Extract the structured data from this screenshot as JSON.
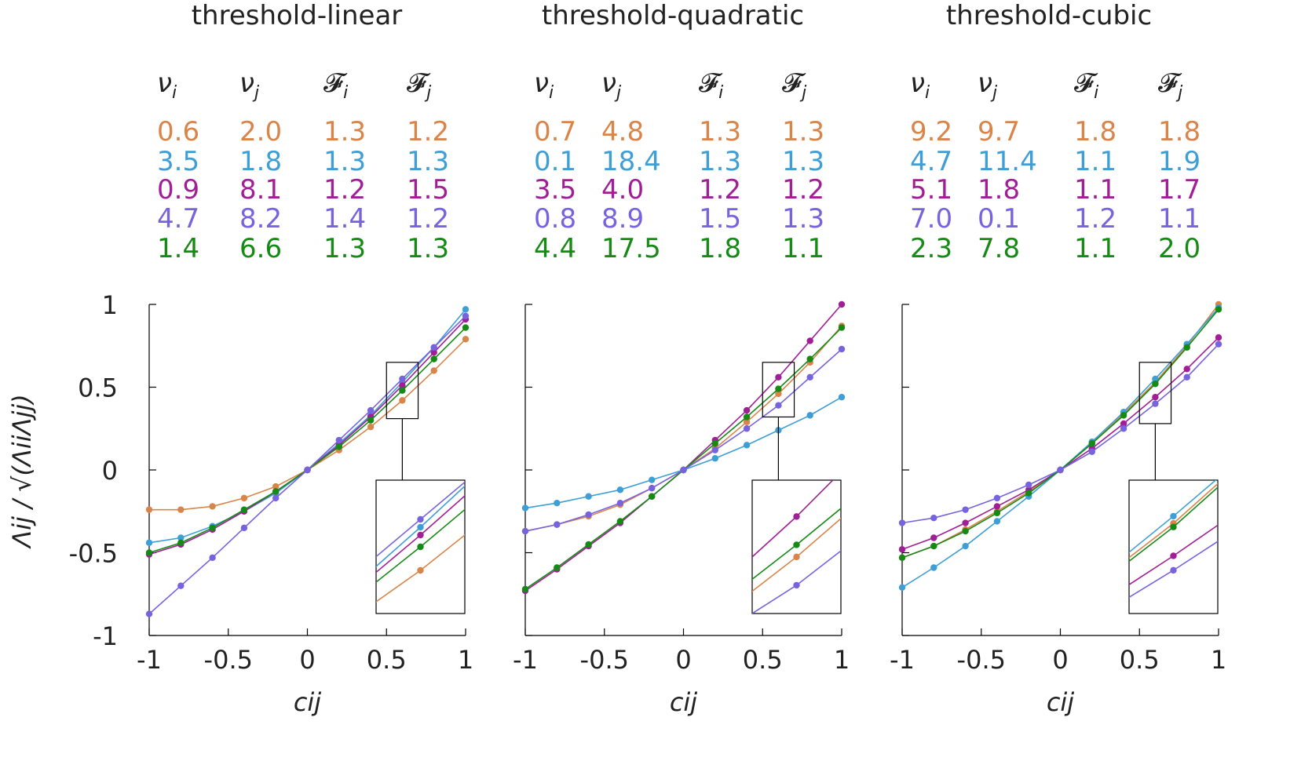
{
  "colors": [
    "#d9854a",
    "#3d9fd6",
    "#a11f96",
    "#7763e0",
    "#158a15"
  ],
  "y_axis_label": "Λij / √(ΛiiΛjj)",
  "x_axis_label": "cij",
  "panels": [
    {
      "title": "threshold-linear",
      "table_headers": [
        "ν_i",
        "ν_j",
        "F_i",
        "F_j"
      ],
      "table_rows": [
        [
          "0.6",
          "2.0",
          "1.3",
          "1.2"
        ],
        [
          "3.5",
          "1.8",
          "1.3",
          "1.3"
        ],
        [
          "0.9",
          "8.1",
          "1.2",
          "1.5"
        ],
        [
          "4.7",
          "8.2",
          "1.4",
          "1.2"
        ],
        [
          "1.4",
          "6.6",
          "1.3",
          "1.3"
        ]
      ]
    },
    {
      "title": "threshold-quadratic",
      "table_headers": [
        "ν_i",
        "ν_j",
        "F_i",
        "F_j"
      ],
      "table_rows": [
        [
          "0.7",
          "4.8",
          "1.3",
          "1.3"
        ],
        [
          "0.1",
          "18.4",
          "1.3",
          "1.3"
        ],
        [
          "3.5",
          "4.0",
          "1.2",
          "1.2"
        ],
        [
          "0.8",
          "8.9",
          "1.5",
          "1.3"
        ],
        [
          "4.4",
          "17.5",
          "1.8",
          "1.1"
        ]
      ]
    },
    {
      "title": "threshold-cubic",
      "table_headers": [
        "ν_i",
        "ν_j",
        "F_i",
        "F_j"
      ],
      "table_rows": [
        [
          "9.2",
          "9.7",
          "1.8",
          "1.8"
        ],
        [
          "4.7",
          "11.4",
          "1.1",
          "1.9"
        ],
        [
          "5.1",
          "1.8",
          "1.1",
          "1.7"
        ],
        [
          "7.0",
          "0.1",
          "1.2",
          "1.1"
        ],
        [
          "2.3",
          "7.8",
          "1.1",
          "2.0"
        ]
      ]
    }
  ],
  "chart_data": [
    {
      "type": "line",
      "title": "threshold-linear",
      "xlabel": "cij",
      "ylabel": "Λij / √(ΛiiΛjj)",
      "xlim": [
        -1,
        1
      ],
      "ylim": [
        -1,
        1
      ],
      "x": [
        -1,
        -0.8,
        -0.6,
        -0.4,
        -0.2,
        0,
        0.2,
        0.4,
        0.6,
        0.8,
        1
      ],
      "xticks": [
        "-1",
        "-0.5",
        "0",
        "0.5",
        "1"
      ],
      "yticks": [
        "-1",
        "-0.5",
        "0",
        "0.5",
        "1"
      ],
      "inset": {
        "x_range": [
          0.5,
          0.7
        ],
        "y_range": [
          0.31,
          0.65
        ]
      },
      "series": [
        {
          "name": "ν_i=0.6, ν_j=2.0",
          "values": [
            -0.24,
            -0.24,
            -0.22,
            -0.17,
            -0.1,
            0,
            0.12,
            0.26,
            0.42,
            0.6,
            0.79
          ]
        },
        {
          "name": "ν_i=3.5, ν_j=1.8",
          "values": [
            -0.44,
            -0.41,
            -0.34,
            -0.25,
            -0.14,
            0,
            0.16,
            0.33,
            0.53,
            0.74,
            0.97
          ]
        },
        {
          "name": "ν_i=0.9, ν_j=8.1",
          "values": [
            -0.51,
            -0.45,
            -0.36,
            -0.25,
            -0.13,
            0,
            0.15,
            0.32,
            0.51,
            0.71,
            0.91
          ]
        },
        {
          "name": "ν_i=4.7, ν_j=8.2",
          "values": [
            -0.87,
            -0.7,
            -0.53,
            -0.35,
            -0.17,
            0,
            0.18,
            0.36,
            0.55,
            0.74,
            0.93
          ]
        },
        {
          "name": "ν_i=1.4, ν_j=6.6",
          "values": [
            -0.5,
            -0.44,
            -0.35,
            -0.24,
            -0.13,
            0,
            0.14,
            0.3,
            0.48,
            0.67,
            0.86
          ]
        }
      ]
    },
    {
      "type": "line",
      "title": "threshold-quadratic",
      "xlabel": "cij",
      "ylabel": "Λij / √(ΛiiΛjj)",
      "xlim": [
        -1,
        1
      ],
      "ylim": [
        -1,
        1
      ],
      "x": [
        -1,
        -0.8,
        -0.6,
        -0.4,
        -0.2,
        0,
        0.2,
        0.4,
        0.6,
        0.8,
        1
      ],
      "xticks": [
        "-1",
        "-0.5",
        "0",
        "0.5",
        "1"
      ],
      "yticks": [
        "-1",
        "-0.5",
        "0",
        "0.5",
        "1"
      ],
      "inset": {
        "x_range": [
          0.5,
          0.7
        ],
        "y_range": [
          0.32,
          0.65
        ]
      },
      "series": [
        {
          "name": "ν_i=0.7, ν_j=4.8",
          "values": [
            -0.37,
            -0.33,
            -0.28,
            -0.21,
            -0.11,
            0,
            0.13,
            0.29,
            0.46,
            0.65,
            0.87
          ]
        },
        {
          "name": "ν_i=0.1, ν_j=18.4",
          "values": [
            -0.23,
            -0.2,
            -0.16,
            -0.12,
            -0.06,
            0,
            0.07,
            0.15,
            0.24,
            0.33,
            0.44
          ]
        },
        {
          "name": "ν_i=3.5, ν_j=4.0",
          "values": [
            -0.73,
            -0.6,
            -0.46,
            -0.32,
            -0.16,
            0,
            0.18,
            0.36,
            0.56,
            0.78,
            1.0
          ]
        },
        {
          "name": "ν_i=0.8, ν_j=8.9",
          "values": [
            -0.37,
            -0.33,
            -0.27,
            -0.2,
            -0.11,
            0,
            0.12,
            0.25,
            0.39,
            0.56,
            0.73
          ]
        },
        {
          "name": "ν_i=4.4, ν_j=17.5",
          "values": [
            -0.72,
            -0.59,
            -0.45,
            -0.31,
            -0.16,
            0,
            0.16,
            0.32,
            0.49,
            0.67,
            0.86
          ]
        }
      ]
    },
    {
      "type": "line",
      "title": "threshold-cubic",
      "xlabel": "cij",
      "ylabel": "Λij / √(ΛiiΛjj)",
      "xlim": [
        -1,
        1
      ],
      "ylim": [
        -1,
        1
      ],
      "x": [
        -1,
        -0.8,
        -0.6,
        -0.4,
        -0.2,
        0,
        0.2,
        0.4,
        0.6,
        0.8,
        1
      ],
      "xticks": [
        "-1",
        "-0.5",
        "0",
        "0.5",
        "1"
      ],
      "yticks": [
        "-1",
        "-0.5",
        "0",
        "0.5",
        "1"
      ],
      "inset": {
        "x_range": [
          0.5,
          0.7
        ],
        "y_range": [
          0.28,
          0.65
        ]
      },
      "series": [
        {
          "name": "ν_i=9.2, ν_j=9.7",
          "values": [
            -0.53,
            -0.46,
            -0.36,
            -0.25,
            -0.13,
            0,
            0.16,
            0.34,
            0.53,
            0.75,
            1.0
          ]
        },
        {
          "name": "ν_i=4.7, ν_j=11.4",
          "values": [
            -0.71,
            -0.59,
            -0.46,
            -0.31,
            -0.16,
            0,
            0.17,
            0.35,
            0.55,
            0.76,
            0.98
          ]
        },
        {
          "name": "ν_i=5.1, ν_j=1.8",
          "values": [
            -0.48,
            -0.41,
            -0.32,
            -0.22,
            -0.12,
            0,
            0.13,
            0.28,
            0.44,
            0.61,
            0.8
          ]
        },
        {
          "name": "ν_i=7.0, ν_j=0.1",
          "values": [
            -0.32,
            -0.29,
            -0.24,
            -0.17,
            -0.09,
            0,
            0.11,
            0.25,
            0.4,
            0.56,
            0.76
          ]
        },
        {
          "name": "ν_i=2.3, ν_j=7.8",
          "values": [
            -0.53,
            -0.46,
            -0.37,
            -0.26,
            -0.14,
            0,
            0.16,
            0.33,
            0.52,
            0.74,
            0.97
          ]
        }
      ]
    }
  ]
}
